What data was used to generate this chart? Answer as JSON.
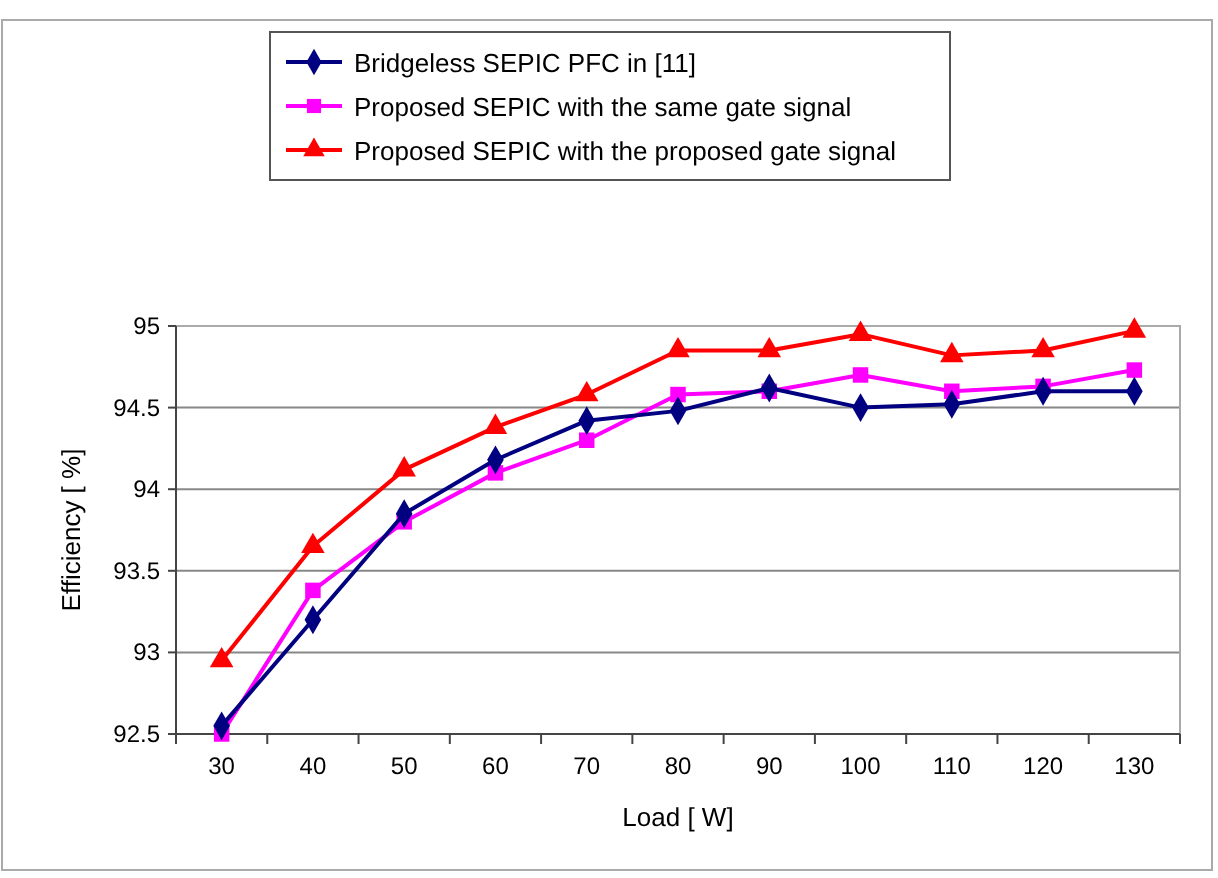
{
  "chart_data": {
    "type": "line",
    "xlabel": "Load [ W]",
    "ylabel": "Efficiency [ %]",
    "categories": [
      "30",
      "40",
      "50",
      "60",
      "70",
      "80",
      "90",
      "100",
      "110",
      "120",
      "130"
    ],
    "ylim": [
      92.5,
      95
    ],
    "yticks": [
      92.5,
      93,
      93.5,
      94,
      94.5,
      95
    ],
    "grid": "y",
    "legend": "top",
    "series": [
      {
        "name": "Bridgeless SEPIC PFC in [11]",
        "color": "#000080",
        "marker": "diamond",
        "values": [
          92.55,
          93.2,
          93.85,
          94.18,
          94.42,
          94.48,
          94.62,
          94.5,
          94.52,
          94.6,
          94.6
        ]
      },
      {
        "name": "Proposed SEPIC with the same gate signal",
        "color": "#ff00ff",
        "marker": "square",
        "values": [
          92.5,
          93.38,
          93.8,
          94.1,
          94.3,
          94.58,
          94.6,
          94.7,
          94.6,
          94.63,
          94.73
        ]
      },
      {
        "name": "Proposed SEPIC with the proposed gate signal",
        "color": "#ff0000",
        "marker": "triangle",
        "values": [
          92.95,
          93.65,
          94.12,
          94.38,
          94.58,
          94.85,
          94.85,
          94.95,
          94.82,
          94.85,
          94.97
        ]
      }
    ]
  }
}
